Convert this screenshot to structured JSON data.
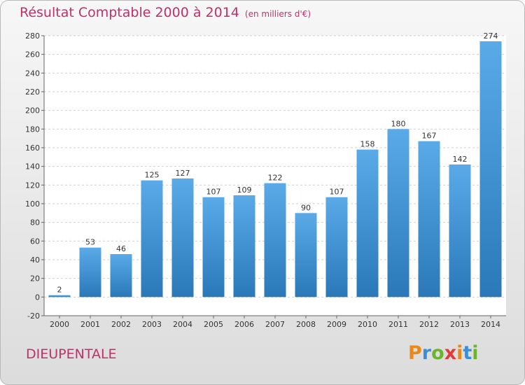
{
  "header": {
    "title": "Résultat Comptable 2000 à 2014",
    "unit": "(en milliers d'€)"
  },
  "commune": "DIEUPENTALE",
  "logo": {
    "text": "Proxiti",
    "colors": [
      "#e8891e",
      "#3a8fd6",
      "#6bb52e",
      "#e03a3a",
      "#e8891e",
      "#3a8fd6",
      "#6bb52e"
    ]
  },
  "colors": {
    "bar_light": "#5aaae8",
    "bar_dark": "#2a78b8",
    "title": "#c0306a"
  },
  "chart_data": {
    "type": "bar",
    "categories": [
      "2000",
      "2001",
      "2002",
      "2003",
      "2004",
      "2005",
      "2006",
      "2007",
      "2008",
      "2009",
      "2010",
      "2011",
      "2012",
      "2013",
      "2014"
    ],
    "values": [
      2,
      53,
      46,
      125,
      127,
      107,
      109,
      122,
      90,
      107,
      158,
      180,
      167,
      142,
      274
    ],
    "data_labels": [
      "2",
      "53",
      "46",
      "125",
      "127",
      "107",
      "109",
      "122",
      "90",
      "107",
      "158",
      "180",
      "167",
      "142",
      "274"
    ],
    "y_ticks": [
      "-20",
      "0",
      "20",
      "40",
      "60",
      "80",
      "100",
      "120",
      "140",
      "160",
      "180",
      "200",
      "220",
      "240",
      "260",
      "280"
    ],
    "ylim": [
      -20,
      280
    ],
    "grid": true
  }
}
